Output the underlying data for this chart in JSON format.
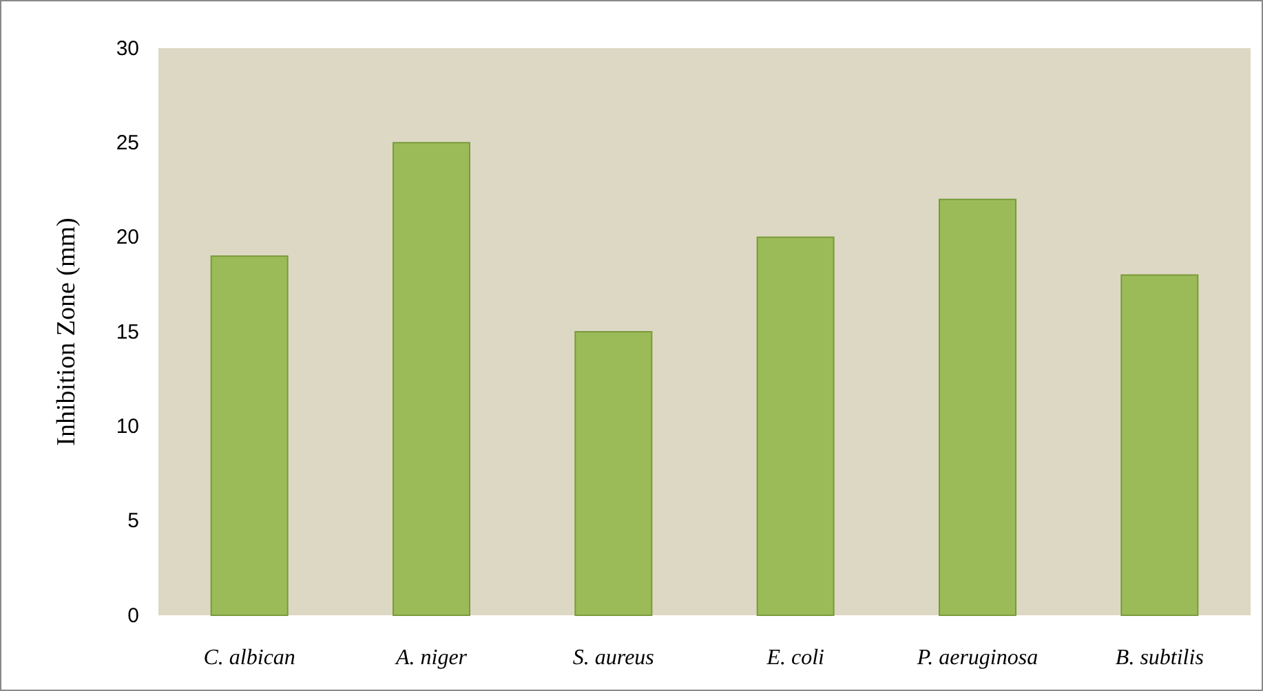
{
  "chart_data": {
    "type": "bar",
    "ylabel": "Inhibition Zone (mm)",
    "categories": [
      "C. albican",
      "A. niger",
      "S. aureus",
      "E. coli",
      "P. aeruginosa",
      "B. subtilis"
    ],
    "values": [
      19,
      25,
      15,
      20,
      22,
      18
    ],
    "color": "#9bbb59",
    "ylim": [
      0,
      30
    ],
    "yticks": [
      0,
      5,
      10,
      15,
      20,
      25,
      30
    ],
    "grid": false
  }
}
